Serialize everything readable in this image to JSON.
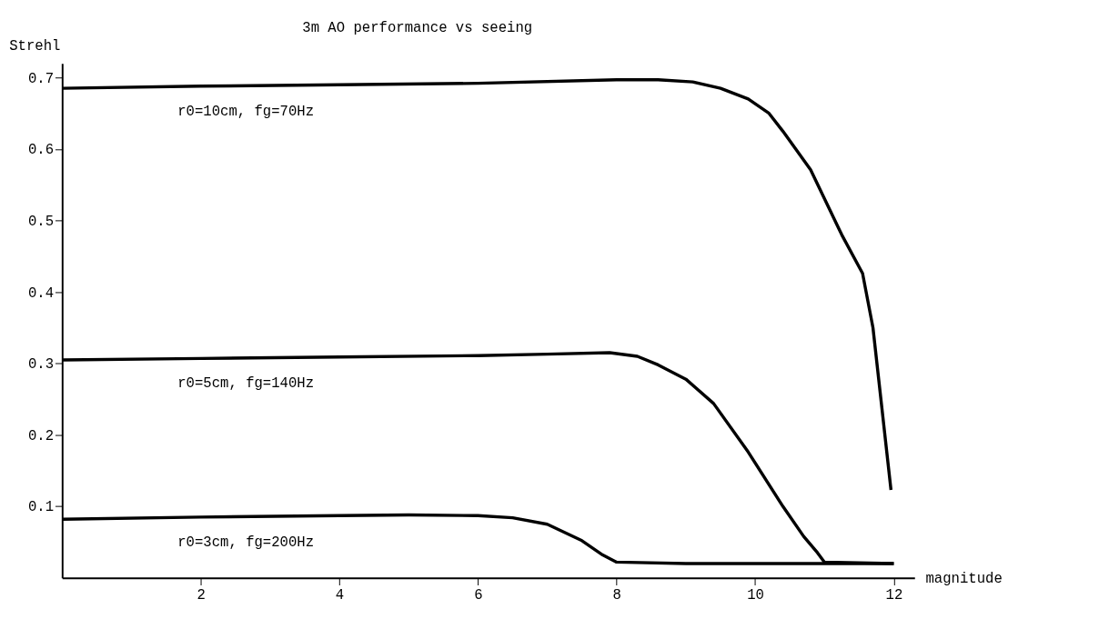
{
  "chart_data": {
    "type": "line",
    "title": "3m AO performance vs seeing",
    "xlabel": "magnitude",
    "ylabel": "Strehl",
    "xlim": [
      0,
      12.3
    ],
    "ylim": [
      0,
      0.72
    ],
    "xticks": [
      2,
      4,
      6,
      8,
      10,
      12
    ],
    "yticks": [
      0.1,
      0.2,
      0.3,
      0.4,
      0.5,
      0.6,
      0.7
    ],
    "grid": false,
    "legend": false,
    "marker": "none",
    "line_style": "solid",
    "series": [
      {
        "name": "r0=10cm, fg=70Hz",
        "color": "#000000",
        "x": [
          0,
          2,
          4,
          6,
          8,
          8.6,
          9.1,
          9.5,
          9.9,
          10.2,
          10.4,
          10.8,
          11.25,
          11.55,
          11.7,
          11.96
        ],
        "values": [
          0.685,
          0.688,
          0.69,
          0.692,
          0.697,
          0.697,
          0.694,
          0.685,
          0.67,
          0.65,
          0.625,
          0.571,
          0.48,
          0.426,
          0.35,
          0.123
        ]
      },
      {
        "name": "r0=5cm, fg=140Hz",
        "color": "#000000",
        "x": [
          0,
          2,
          4,
          6,
          7,
          7.9,
          8.3,
          8.6,
          9.0,
          9.4,
          9.9,
          10.4,
          10.7,
          10.9,
          11.0,
          12
        ],
        "values": [
          0.305,
          0.307,
          0.309,
          0.311,
          0.313,
          0.315,
          0.31,
          0.298,
          0.278,
          0.244,
          0.176,
          0.1,
          0.058,
          0.035,
          0.022,
          0.02
        ]
      },
      {
        "name": "r0=3cm, fg=200Hz",
        "color": "#000000",
        "x": [
          0,
          2,
          4,
          5,
          6,
          6.5,
          7,
          7.5,
          7.8,
          8,
          9,
          10,
          11,
          12
        ],
        "values": [
          0.082,
          0.085,
          0.087,
          0.088,
          0.087,
          0.084,
          0.075,
          0.052,
          0.032,
          0.022,
          0.02,
          0.02,
          0.02,
          0.02
        ]
      }
    ]
  }
}
